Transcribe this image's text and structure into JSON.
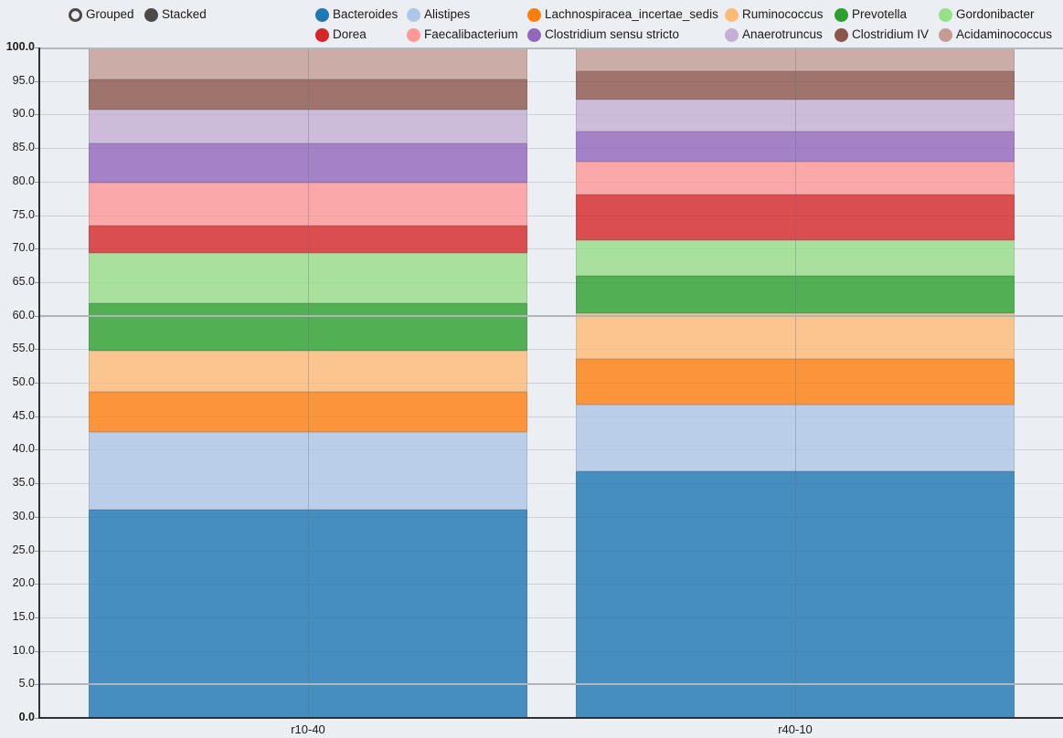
{
  "controls": {
    "options": [
      {
        "label": "Grouped",
        "selected": false
      },
      {
        "label": "Stacked",
        "selected": true
      }
    ]
  },
  "theme": {
    "background": "#ebeef3",
    "grid_color": "#ccd1d8",
    "guide_color": "#b0b5bc",
    "axis_color": "#2d3035",
    "radio_color": "#4a4a4a"
  },
  "chart_data": {
    "type": "bar",
    "stacked": true,
    "title": "",
    "xlabel": "",
    "ylabel": "",
    "categories": [
      "r10-40",
      "r40-10"
    ],
    "series": [
      {
        "name": "Bacteroides",
        "color": "#1f77b4",
        "values": [
          31.0,
          36.8
        ]
      },
      {
        "name": "Alistipes",
        "color": "#aec7e8",
        "values": [
          11.6,
          9.9
        ]
      },
      {
        "name": "Lachnospiracea_incertae_sedis",
        "color": "#ff7f0e",
        "values": [
          6.0,
          6.9
        ]
      },
      {
        "name": "Ruminococcus",
        "color": "#ffbb78",
        "values": [
          6.2,
          6.8
        ]
      },
      {
        "name": "Prevotella",
        "color": "#2ca02c",
        "values": [
          7.0,
          5.6
        ]
      },
      {
        "name": "Gordonibacter",
        "color": "#98df8a",
        "values": [
          7.6,
          5.2
        ]
      },
      {
        "name": "Dorea",
        "color": "#d62728",
        "values": [
          4.1,
          6.9
        ]
      },
      {
        "name": "Faecalibacterium",
        "color": "#ff9896",
        "values": [
          6.3,
          4.9
        ]
      },
      {
        "name": "Clostridium sensu stricto",
        "color": "#9467bd",
        "values": [
          5.9,
          4.5
        ]
      },
      {
        "name": "Anaerotruncus",
        "color": "#c5b0d5",
        "values": [
          5.0,
          4.8
        ]
      },
      {
        "name": "Clostridium IV",
        "color": "#8c564b",
        "values": [
          4.5,
          4.1
        ]
      },
      {
        "name": "Acidaminococcus",
        "color": "#c49c94",
        "values": [
          4.8,
          3.6
        ]
      }
    ],
    "ylim": [
      0,
      100
    ],
    "ytick_interval": 5,
    "ytick_labels": [
      "0.0",
      "5.0",
      "10.0",
      "15.0",
      "20.0",
      "25.0",
      "30.0",
      "35.0",
      "40.0",
      "45.0",
      "50.0",
      "55.0",
      "60.0",
      "65.0",
      "70.0",
      "75.0",
      "80.0",
      "85.0",
      "90.0",
      "95.0",
      "100.0"
    ],
    "grid": true,
    "guide_lines": [
      5,
      60
    ],
    "bar_opacity": 0.8,
    "legend_position": "top",
    "legend_rows": 2
  }
}
